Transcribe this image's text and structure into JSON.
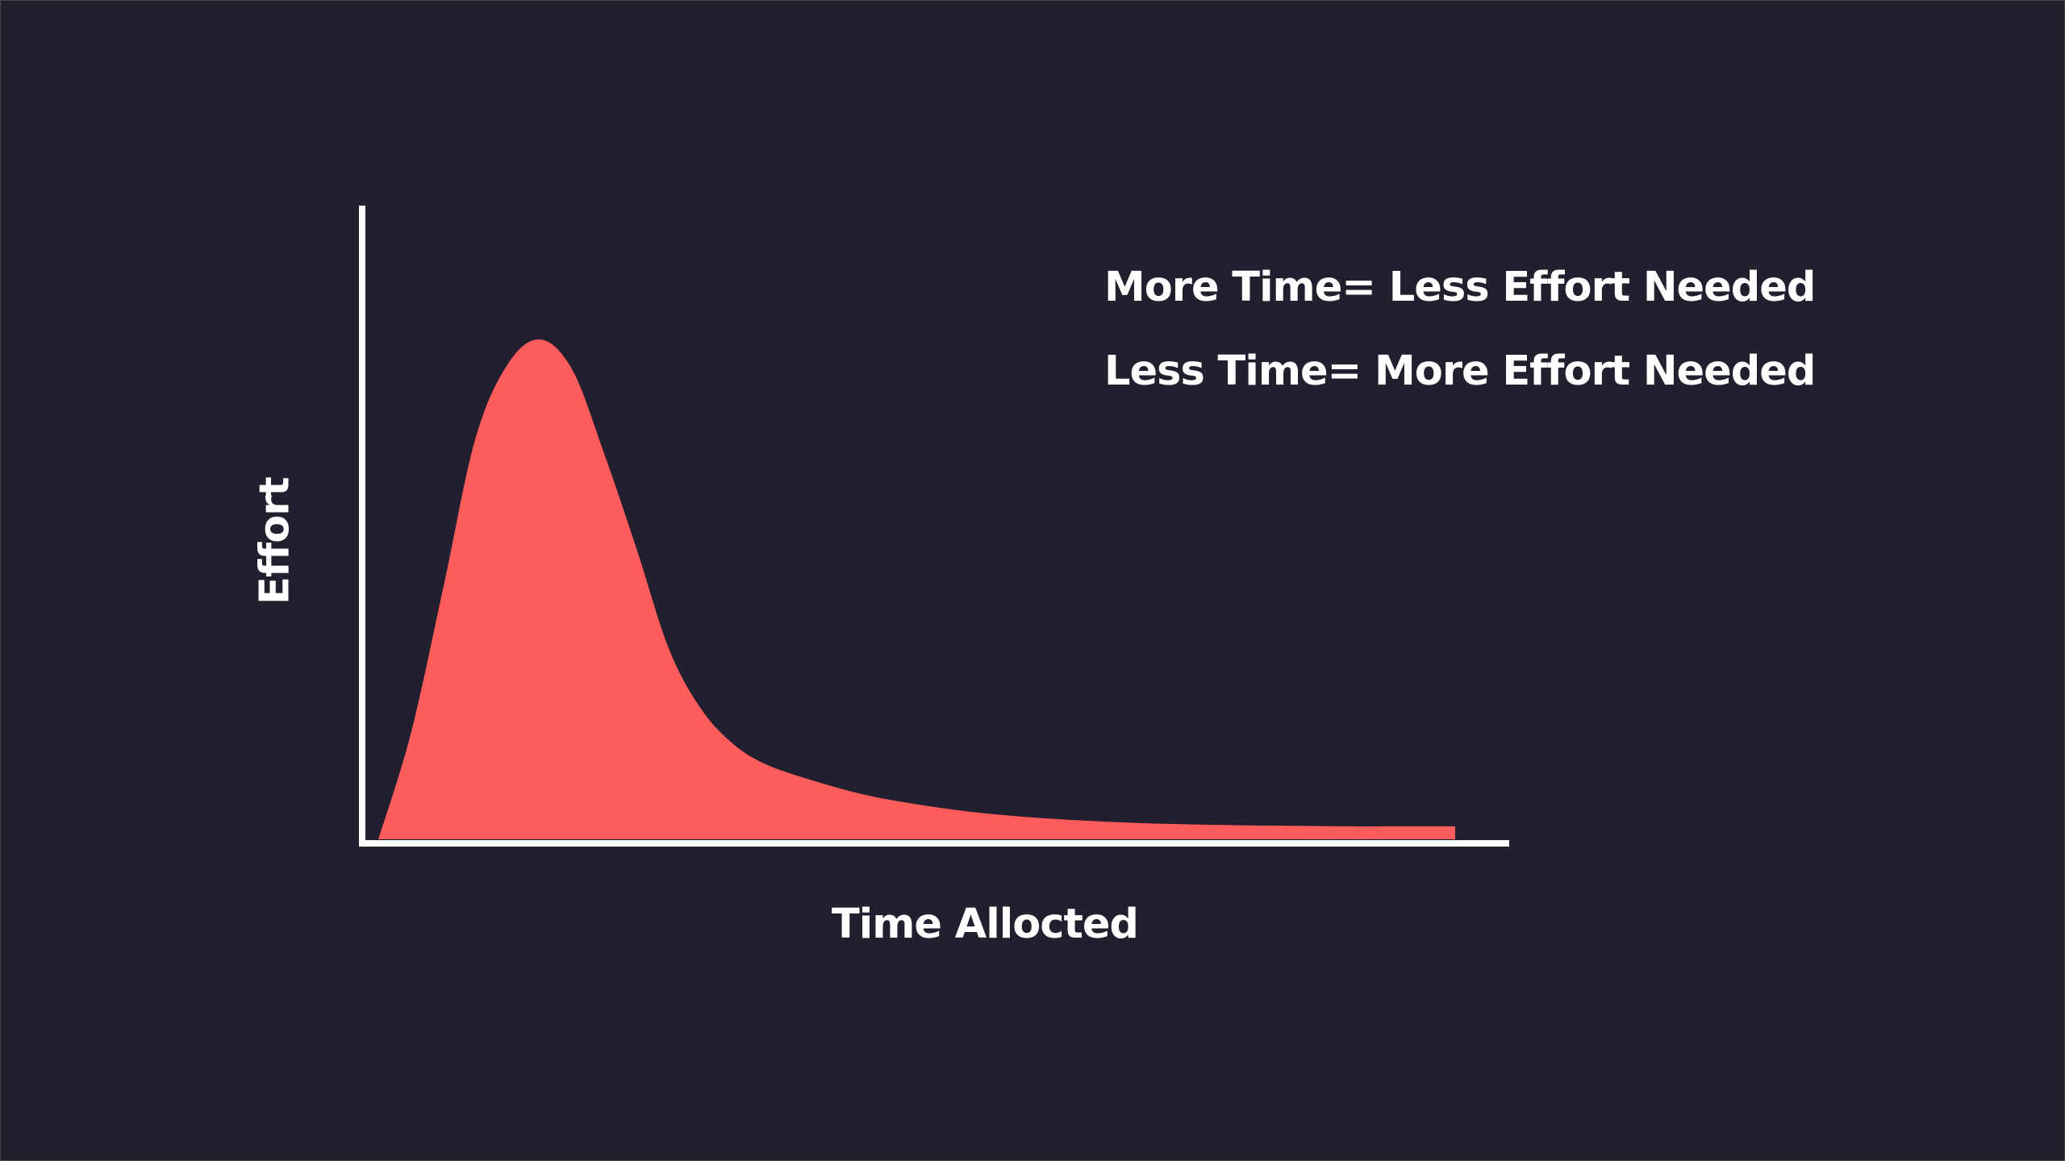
{
  "colors": {
    "background": "#221f2e",
    "area_fill": "#ff5c5c",
    "axis": "#ffffff",
    "text": "#ffffff"
  },
  "chart_data": {
    "type": "area",
    "title": "",
    "xlabel": "Time Allocted",
    "ylabel": "Effort",
    "grid": false,
    "legend": "none",
    "xlim": [
      0,
      1
    ],
    "ylim": [
      0,
      1
    ],
    "annotations": [
      "More Time= Less Effort Needed",
      "Less Time= More Effort Needed"
    ],
    "series": [
      {
        "x": [
          0.0,
          0.03,
          0.06,
          0.09,
          0.12,
          0.15,
          0.18,
          0.21,
          0.24,
          0.27,
          0.3,
          0.33,
          0.36,
          0.4,
          0.45,
          0.5,
          0.55,
          0.6,
          0.65,
          0.7,
          0.75,
          0.8,
          0.85,
          0.9,
          0.95,
          1.0
        ],
        "y": [
          0.0,
          0.21,
          0.5,
          0.8,
          0.95,
          1.0,
          0.94,
          0.77,
          0.58,
          0.38,
          0.26,
          0.19,
          0.15,
          0.12,
          0.09,
          0.07,
          0.055,
          0.045,
          0.038,
          0.033,
          0.03,
          0.028,
          0.027,
          0.026,
          0.026,
          0.026
        ]
      }
    ]
  }
}
